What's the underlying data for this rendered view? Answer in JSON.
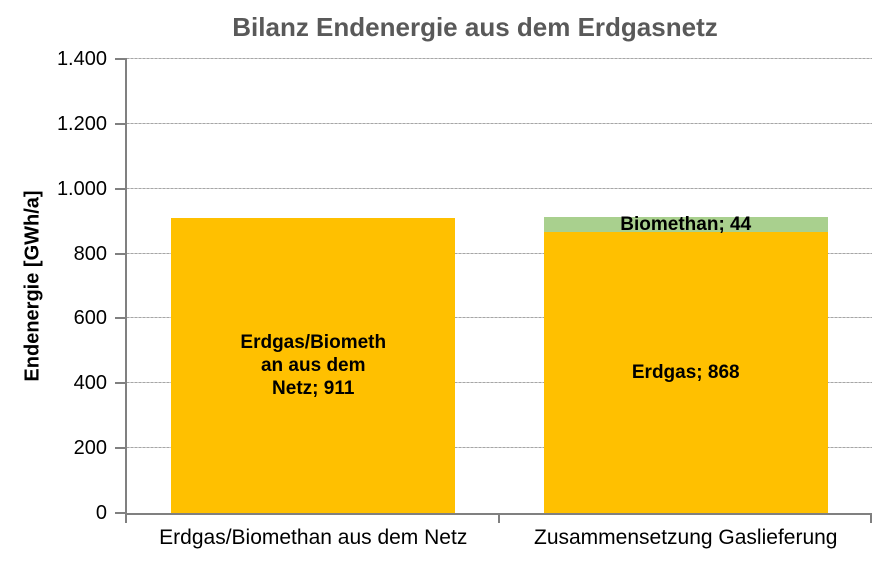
{
  "title": "Bilanz Endenergie aus dem Erdgasnetz",
  "colors": {
    "erdgas_orange": "#FFC000",
    "biomethan_green": "#A9D08E",
    "title_text": "#595959",
    "axis": "#808080",
    "gridline": "#A6A6A6",
    "label_text": "#000000"
  },
  "chart_data": {
    "type": "bar",
    "stacked": true,
    "title": "Bilanz Endenergie aus dem Erdgasnetz",
    "xlabel": "",
    "ylabel": "Endenergie [GWh/a]",
    "ylim": [
      0,
      1400
    ],
    "ytick_step": 200,
    "grid": true,
    "legend": false,
    "yticks": [
      {
        "value": 0,
        "label": "0"
      },
      {
        "value": 200,
        "label": "200"
      },
      {
        "value": 400,
        "label": "400"
      },
      {
        "value": 600,
        "label": "600"
      },
      {
        "value": 800,
        "label": "800"
      },
      {
        "value": 1000,
        "label": "1.000"
      },
      {
        "value": 1200,
        "label": "1.200"
      },
      {
        "value": 1400,
        "label": "1.400"
      }
    ],
    "categories": [
      "Erdgas/Biomethan aus dem Netz",
      "Zusammensetzung Gaslieferung"
    ],
    "bars": [
      {
        "category": "Erdgas/Biomethan aus dem Netz",
        "segments": [
          {
            "name": "Erdgas/Biomethan aus dem Netz",
            "value": 911,
            "color": "#FFC000",
            "label": "Erdgas/Biometh\nan aus dem\nNetz; 911"
          }
        ]
      },
      {
        "category": "Zusammensetzung Gaslieferung",
        "segments": [
          {
            "name": "Erdgas",
            "value": 868,
            "color": "#FFC000",
            "label": "Erdgas; 868"
          },
          {
            "name": "Biomethan",
            "value": 44,
            "color": "#A9D08E",
            "label": "Biomethan; 44"
          }
        ]
      }
    ]
  }
}
